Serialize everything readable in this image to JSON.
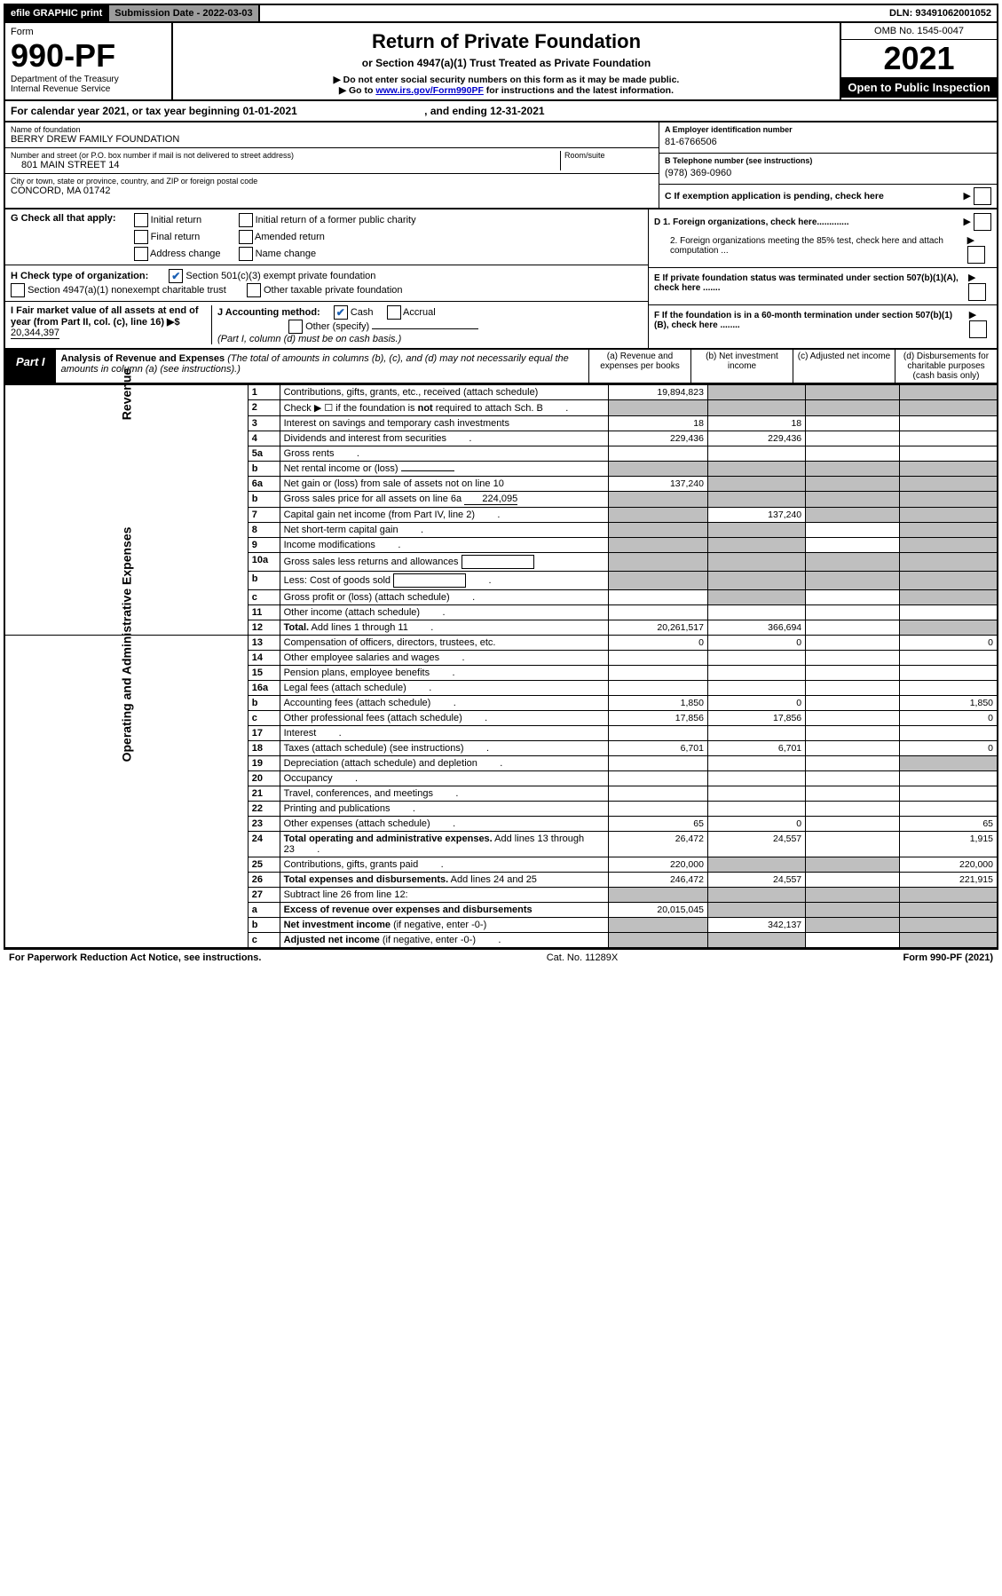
{
  "topbar": {
    "efile": "efile GRAPHIC print",
    "sub_label": "Submission Date - ",
    "sub_date": "2022-03-03",
    "dln": "DLN: 93491062001052"
  },
  "header": {
    "form_label": "Form",
    "form_no": "990-PF",
    "dept": "Department of the Treasury",
    "irs": "Internal Revenue Service",
    "title": "Return of Private Foundation",
    "subtitle": "or Section 4947(a)(1) Trust Treated as Private Foundation",
    "note1": "▶ Do not enter social security numbers on this form as it may be made public.",
    "note2_pre": "▶ Go to ",
    "note2_link": "www.irs.gov/Form990PF",
    "note2_post": " for instructions and the latest information.",
    "omb": "OMB No. 1545-0047",
    "year": "2021",
    "open": "Open to Public Inspection",
    "cal_year": "For calendar year 2021, or tax year beginning 01-01-2021",
    "cal_year_end": ", and ending 12-31-2021"
  },
  "info": {
    "name_label": "Name of foundation",
    "name": "BERRY DREW FAMILY FOUNDATION",
    "addr_label": "Number and street (or P.O. box number if mail is not delivered to street address)",
    "addr": "801 MAIN STREET 14",
    "room_label": "Room/suite",
    "city_label": "City or town, state or province, country, and ZIP or foreign postal code",
    "city": "CONCORD, MA  01742",
    "ein_label": "A Employer identification number",
    "ein": "81-6766506",
    "tel_label": "B Telephone number (see instructions)",
    "tel": "(978) 369-0960",
    "c_label": "C If exemption application is pending, check here",
    "g_label": "G Check all that apply:",
    "g_initial": "Initial return",
    "g_initial_former": "Initial return of a former public charity",
    "g_final": "Final return",
    "g_amended": "Amended return",
    "g_address": "Address change",
    "g_name": "Name change",
    "d1": "D 1. Foreign organizations, check here.............",
    "d2": "2. Foreign organizations meeting the 85% test, check here and attach computation ...",
    "e": "E  If private foundation status was terminated under section 507(b)(1)(A), check here .......",
    "h_label": "H Check type of organization:",
    "h_501c3": "Section 501(c)(3) exempt private foundation",
    "h_4947": "Section 4947(a)(1) nonexempt charitable trust",
    "h_other_tax": "Other taxable private foundation",
    "i_label": "I Fair market value of all assets at end of year (from Part II, col. (c), line 16) ▶$",
    "i_val": "20,344,397",
    "j_label": "J Accounting method:",
    "j_cash": "Cash",
    "j_accrual": "Accrual",
    "j_other": "Other (specify)",
    "j_note": "(Part I, column (d) must be on cash basis.)",
    "f": "F  If the foundation is in a 60-month termination under section 507(b)(1)(B), check here ........"
  },
  "part1": {
    "label": "Part I",
    "title": "Analysis of Revenue and Expenses",
    "title_note": " (The total of amounts in columns (b), (c), and (d) may not necessarily equal the amounts in column (a) (see instructions).)",
    "col_a": "(a) Revenue and expenses per books",
    "col_b": "(b) Net investment income",
    "col_c": "(c) Adjusted net income",
    "col_d": "(d) Disbursements for charitable purposes (cash basis only)",
    "revenue_label": "Revenue",
    "expenses_label": "Operating and Administrative Expenses"
  },
  "rows": [
    {
      "n": "1",
      "d": "Contributions, gifts, grants, etc., received (attach schedule)",
      "a": "19,894,823",
      "greyBCD": true
    },
    {
      "n": "2",
      "d": "Check ▶ ☐ if the foundation is <b>not</b> required to attach Sch. B",
      "dots": true,
      "greyABCD": true
    },
    {
      "n": "3",
      "d": "Interest on savings and temporary cash investments",
      "a": "18",
      "b": "18"
    },
    {
      "n": "4",
      "d": "Dividends and interest from securities",
      "dots": true,
      "a": "229,436",
      "b": "229,436"
    },
    {
      "n": "5a",
      "d": "Gross rents",
      "dots": true
    },
    {
      "n": "b",
      "d": "Net rental income or (loss)",
      "inline": true,
      "greyABCD": true
    },
    {
      "n": "6a",
      "d": "Net gain or (loss) from sale of assets not on line 10",
      "a": "137,240",
      "greyBCD": true
    },
    {
      "n": "b",
      "d": "Gross sales price for all assets on line 6a",
      "inline": true,
      "inline_val": "224,095",
      "greyABCD": true
    },
    {
      "n": "7",
      "d": "Capital gain net income (from Part IV, line 2)",
      "dots": true,
      "greyA": true,
      "b": "137,240",
      "greyCD": true
    },
    {
      "n": "8",
      "d": "Net short-term capital gain",
      "dots": true,
      "greyABD": true
    },
    {
      "n": "9",
      "d": "Income modifications",
      "dots": true,
      "greyABD": true
    },
    {
      "n": "10a",
      "d": "Gross sales less returns and allowances",
      "subbox": true,
      "greyABCD": true
    },
    {
      "n": "b",
      "d": "Less: Cost of goods sold",
      "dots": true,
      "subbox": true,
      "greyABCD": true
    },
    {
      "n": "c",
      "d": "Gross profit or (loss) (attach schedule)",
      "dots": true,
      "greyBD": true
    },
    {
      "n": "11",
      "d": "Other income (attach schedule)",
      "dots": true
    },
    {
      "n": "12",
      "d": "<b>Total.</b> Add lines 1 through 11",
      "dots": true,
      "a": "20,261,517",
      "b": "366,694",
      "greyD": true
    },
    {
      "n": "13",
      "d": "Compensation of officers, directors, trustees, etc.",
      "a": "0",
      "b": "0",
      "d_": "0"
    },
    {
      "n": "14",
      "d": "Other employee salaries and wages",
      "dots": true
    },
    {
      "n": "15",
      "d": "Pension plans, employee benefits",
      "dots": true
    },
    {
      "n": "16a",
      "d": "Legal fees (attach schedule)",
      "dots": true
    },
    {
      "n": "b",
      "d": "Accounting fees (attach schedule)",
      "dots": true,
      "a": "1,850",
      "b": "0",
      "d_": "1,850"
    },
    {
      "n": "c",
      "d": "Other professional fees (attach schedule)",
      "dots": true,
      "a": "17,856",
      "b": "17,856",
      "d_": "0"
    },
    {
      "n": "17",
      "d": "Interest",
      "dots": true
    },
    {
      "n": "18",
      "d": "Taxes (attach schedule) (see instructions)",
      "dots": true,
      "a": "6,701",
      "b": "6,701",
      "d_": "0"
    },
    {
      "n": "19",
      "d": "Depreciation (attach schedule) and depletion",
      "dots": true,
      "greyD": true
    },
    {
      "n": "20",
      "d": "Occupancy",
      "dots": true
    },
    {
      "n": "21",
      "d": "Travel, conferences, and meetings",
      "dots": true
    },
    {
      "n": "22",
      "d": "Printing and publications",
      "dots": true
    },
    {
      "n": "23",
      "d": "Other expenses (attach schedule)",
      "dots": true,
      "a": "65",
      "b": "0",
      "d_": "65"
    },
    {
      "n": "24",
      "d": "<b>Total operating and administrative expenses.</b> Add lines 13 through 23",
      "dots": true,
      "a": "26,472",
      "b": "24,557",
      "d_": "1,915"
    },
    {
      "n": "25",
      "d": "Contributions, gifts, grants paid",
      "dots": true,
      "a": "220,000",
      "greyBC": true,
      "d_": "220,000"
    },
    {
      "n": "26",
      "d": "<b>Total expenses and disbursements.</b> Add lines 24 and 25",
      "a": "246,472",
      "b": "24,557",
      "d_": "221,915"
    },
    {
      "n": "27",
      "d": "Subtract line 26 from line 12:",
      "greyABCD": true
    },
    {
      "n": "a",
      "d": "<b>Excess of revenue over expenses and disbursements</b>",
      "a": "20,015,045",
      "greyBCD": true
    },
    {
      "n": "b",
      "d": "<b>Net investment income</b> (if negative, enter -0-)",
      "greyA": true,
      "b": "342,137",
      "greyCD": true
    },
    {
      "n": "c",
      "d": "<b>Adjusted net income</b> (if negative, enter -0-)",
      "dots": true,
      "greyABD": true
    }
  ],
  "footer": {
    "left": "For Paperwork Reduction Act Notice, see instructions.",
    "center": "Cat. No. 11289X",
    "right": "Form 990-PF (2021)"
  }
}
